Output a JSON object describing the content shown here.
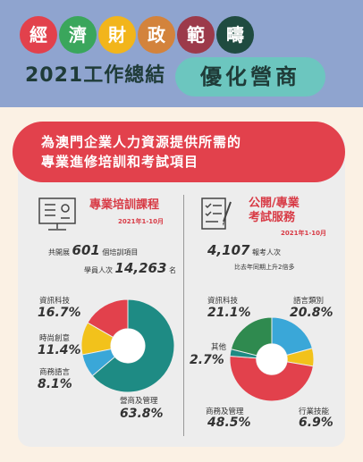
{
  "header": {
    "chars": [
      "經",
      "濟",
      "財",
      "政",
      "範",
      "疇"
    ],
    "char_colors": [
      "#e2414c",
      "#3aa65c",
      "#f2b51b",
      "#d3833c",
      "#9c3a4a",
      "#1f4b40"
    ],
    "year_title": "2021工作總結",
    "pill_text": "優化營商"
  },
  "banner": {
    "line1": "為澳門企業人力資源提供所需的",
    "line2": "專業進修培訓和考試項目"
  },
  "left": {
    "title": "專業培訓課程",
    "date": "2021年1-10月",
    "stat1_prefix": "共開展",
    "stat1_value": "601",
    "stat1_suffix": "個培訓項目",
    "stat2_prefix": "學員人次",
    "stat2_value": "14,263",
    "stat2_suffix": "名"
  },
  "right": {
    "title_line1": "公開/專業",
    "title_line2": "考試服務",
    "date": "2021年1-10月",
    "stat1_value": "4,107",
    "stat1_suffix": "報考人次",
    "stat2": "比去年同期上升2倍多"
  },
  "colors": {
    "teal": "#1e8b84",
    "blue": "#3aa7d8",
    "yellow": "#f2c21b",
    "red": "#e2414c",
    "green": "#2f8a4f"
  },
  "chart_data": [
    {
      "type": "pie",
      "title": "專業培訓課程",
      "categories": [
        "資訊科技",
        "時尚創意",
        "商務語言",
        "營商及管理"
      ],
      "display_values": [
        "16.7%",
        "11.4%",
        "8.1%",
        "63.8%"
      ],
      "values": [
        16.7,
        11.4,
        8.1,
        63.8
      ],
      "colors": [
        "#e2414c",
        "#f2c21b",
        "#3aa7d8",
        "#1e8b84"
      ]
    },
    {
      "type": "pie",
      "title": "公開/專業考試服務",
      "categories": [
        "語言類別",
        "行業技能",
        "商務及管理",
        "其他",
        "資訊科技"
      ],
      "display_values": [
        "20.8%",
        "6.9%",
        "48.5%",
        "2.7%",
        "21.1%"
      ],
      "values": [
        20.8,
        6.9,
        48.5,
        2.7,
        21.1
      ],
      "colors": [
        "#3aa7d8",
        "#f2c21b",
        "#e2414c",
        "#1e8b84",
        "#2f8a4f"
      ]
    }
  ]
}
